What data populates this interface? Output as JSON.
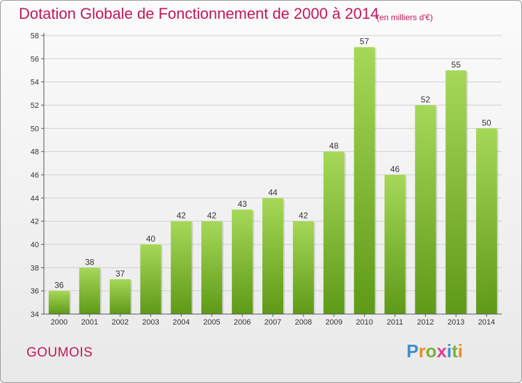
{
  "title": "Dotation Globale de Fonctionnement de 2000 à 2014",
  "unit": "(en milliers d'€)",
  "commune": "GOUMOIS",
  "logo": {
    "text": "Proxiti",
    "letters": [
      "P",
      "r",
      "o",
      "x",
      "i",
      "t",
      "i"
    ],
    "colors": [
      "#3b8fd0",
      "#f08a1d",
      "#7ab23a",
      "#e23c8d",
      "#3b8fd0",
      "#7ab23a",
      "#f08a1d"
    ]
  },
  "colors": {
    "accent": "#c0185a",
    "bar_top": "#a6d858",
    "bar_bottom": "#5e9a17",
    "grid": "#cfcfcf"
  },
  "chart_data": {
    "type": "bar",
    "categories": [
      "2000",
      "2001",
      "2002",
      "2003",
      "2004",
      "2005",
      "2006",
      "2007",
      "2008",
      "2009",
      "2010",
      "2011",
      "2012",
      "2013",
      "2014"
    ],
    "values": [
      36,
      38,
      37,
      40,
      42,
      42,
      43,
      44,
      42,
      48,
      57,
      46,
      52,
      55,
      50
    ],
    "ylim": [
      34,
      58
    ],
    "yticks": [
      34,
      36,
      38,
      40,
      42,
      44,
      46,
      48,
      50,
      52,
      54,
      56,
      58
    ],
    "grid": true,
    "data_labels": true
  }
}
